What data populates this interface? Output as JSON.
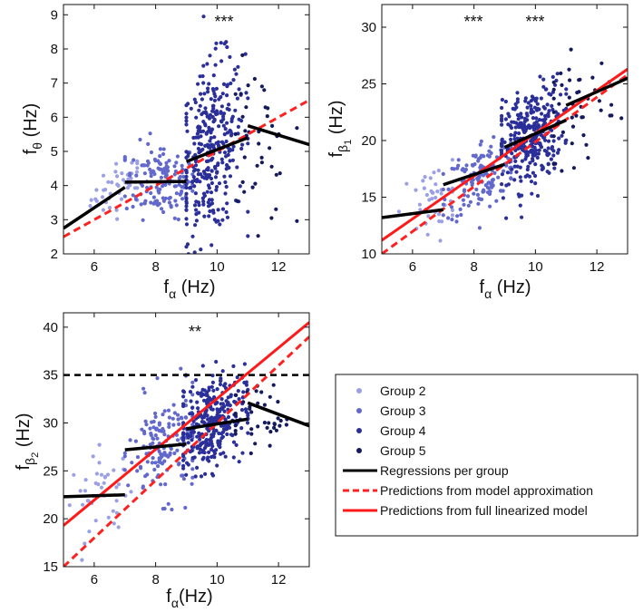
{
  "chart_data": [
    {
      "id": "theta",
      "type": "scatter",
      "xlabel": "f_α (Hz)",
      "ylabel": "f_θ (Hz)",
      "xlim": [
        5,
        13
      ],
      "ylim": [
        2,
        9.3
      ],
      "xticks": [
        6,
        8,
        10,
        12
      ],
      "yticks": [
        2,
        3,
        4,
        5,
        6,
        7,
        8,
        9
      ],
      "significance": [
        {
          "text": "***",
          "x": 10.5,
          "y": 8.9
        }
      ],
      "groups": [
        {
          "name": "Group 2",
          "color": "#9a9fe6",
          "n": 45,
          "x_range": [
            5.4,
            7.4
          ],
          "center": [
            6.9,
            4.0
          ],
          "spread": [
            0.5,
            0.35
          ],
          "slope": 0.4
        },
        {
          "name": "Group 3",
          "color": "#6268cc",
          "n": 140,
          "x_range": [
            7.0,
            9.2
          ],
          "center": [
            8.2,
            4.15
          ],
          "spread": [
            0.6,
            0.55
          ],
          "slope": 0.0
        },
        {
          "name": "Group 4",
          "color": "#2b2f99",
          "n": 330,
          "x_range": [
            9.0,
            11.0
          ],
          "center": [
            9.8,
            5.0
          ],
          "spread": [
            0.55,
            1.25
          ],
          "slope": 0.6
        },
        {
          "name": "Group 5",
          "color": "#141a5c",
          "n": 40,
          "x_range": [
            10.6,
            12.6
          ],
          "center": [
            11.3,
            5.2
          ],
          "spread": [
            0.55,
            1.1
          ],
          "slope": -0.3
        }
      ],
      "regressions": [
        {
          "x": [
            5,
            7
          ],
          "y": [
            2.75,
            3.95
          ]
        },
        {
          "x": [
            7,
            9
          ],
          "y": [
            4.1,
            4.12
          ]
        },
        {
          "x": [
            9,
            11
          ],
          "y": [
            4.7,
            5.4
          ]
        },
        {
          "x": [
            11,
            13
          ],
          "y": [
            5.75,
            5.2
          ]
        }
      ],
      "model_approx": {
        "x": [
          5,
          13
        ],
        "y": [
          2.5,
          6.5
        ]
      }
    },
    {
      "id": "beta1",
      "type": "scatter",
      "xlabel": "f_α (Hz)",
      "ylabel": "f_β1 (Hz)",
      "xlim": [
        5,
        13
      ],
      "ylim": [
        10,
        32
      ],
      "xticks": [
        6,
        8,
        10,
        12
      ],
      "yticks": [
        10,
        15,
        20,
        25,
        30
      ],
      "significance": [
        {
          "text": "***",
          "x": 8.0,
          "y": 30.8
        },
        {
          "text": "***",
          "x": 10.0,
          "y": 30.8
        }
      ],
      "groups": [
        {
          "name": "Group 2",
          "color": "#9a9fe6",
          "n": 40,
          "x_range": [
            5.3,
            7.3
          ],
          "center": [
            6.6,
            14.5
          ],
          "spread": [
            0.5,
            1.6
          ],
          "slope": 0.8
        },
        {
          "name": "Group 3",
          "color": "#6268cc",
          "n": 150,
          "x_range": [
            7.0,
            9.2
          ],
          "center": [
            8.3,
            17.0
          ],
          "spread": [
            0.6,
            1.6
          ],
          "slope": 1.3
        },
        {
          "name": "Group 4",
          "color": "#2b2f99",
          "n": 320,
          "x_range": [
            8.9,
            11.0
          ],
          "center": [
            9.8,
            20.2
          ],
          "spread": [
            0.55,
            2.1
          ],
          "slope": 1.5
        },
        {
          "name": "Group 5",
          "color": "#141a5c",
          "n": 45,
          "x_range": [
            10.6,
            12.8
          ],
          "center": [
            11.4,
            23.0
          ],
          "spread": [
            0.6,
            2.4
          ],
          "slope": 1.1
        }
      ],
      "regressions": [
        {
          "x": [
            5,
            7
          ],
          "y": [
            13.2,
            13.9
          ]
        },
        {
          "x": [
            7,
            9
          ],
          "y": [
            16.1,
            17.9
          ]
        },
        {
          "x": [
            9,
            11
          ],
          "y": [
            19.4,
            21.8
          ]
        },
        {
          "x": [
            11,
            13
          ],
          "y": [
            23.1,
            25.5
          ]
        }
      ],
      "model_approx": {
        "x": [
          5,
          13
        ],
        "y": [
          10.0,
          25.8
        ]
      },
      "full_model": {
        "x": [
          5,
          13
        ],
        "y": [
          11.2,
          26.3
        ]
      }
    },
    {
      "id": "beta2",
      "type": "scatter",
      "xlabel": "f_α(Hz)",
      "ylabel": "f_β2 (Hz)",
      "xlim": [
        5,
        13
      ],
      "ylim": [
        15,
        41.5
      ],
      "xticks": [
        6,
        8,
        10,
        12
      ],
      "yticks": [
        15,
        20,
        25,
        30,
        35,
        40
      ],
      "significance": [
        {
          "text": "**",
          "x": 8.9,
          "y": 39.6
        }
      ],
      "groups": [
        {
          "name": "Group 2",
          "color": "#9a9fe6",
          "n": 40,
          "x_range": [
            5.2,
            7.2
          ],
          "center": [
            6.3,
            22.5
          ],
          "spread": [
            0.55,
            2.2
          ],
          "slope": 0.5
        },
        {
          "name": "Group 3",
          "color": "#6268cc",
          "n": 160,
          "x_range": [
            7.0,
            9.2
          ],
          "center": [
            8.3,
            27.5
          ],
          "spread": [
            0.6,
            2.7
          ],
          "slope": 0.6
        },
        {
          "name": "Group 4",
          "color": "#2b2f99",
          "n": 320,
          "x_range": [
            8.9,
            11.0
          ],
          "center": [
            9.8,
            30.0
          ],
          "spread": [
            0.55,
            2.4
          ],
          "slope": 1.2
        },
        {
          "name": "Group 5",
          "color": "#141a5c",
          "n": 40,
          "x_range": [
            10.6,
            12.6
          ],
          "center": [
            11.3,
            31.0
          ],
          "spread": [
            0.55,
            1.8
          ],
          "slope": -0.8
        }
      ],
      "regressions": [
        {
          "x": [
            5,
            7
          ],
          "y": [
            22.3,
            22.5
          ]
        },
        {
          "x": [
            7,
            9
          ],
          "y": [
            27.2,
            27.8
          ]
        },
        {
          "x": [
            9,
            11
          ],
          "y": [
            29.4,
            30.4
          ]
        },
        {
          "x": [
            11,
            13
          ],
          "y": [
            32.1,
            29.7
          ]
        }
      ],
      "model_approx": {
        "x": [
          5,
          13
        ],
        "y": [
          15.0,
          39.0
        ]
      },
      "full_model": {
        "x": [
          5,
          13
        ],
        "y": [
          19.3,
          40.5
        ]
      },
      "threshold_line": {
        "y": 35
      }
    }
  ],
  "legend": {
    "position": "bottom-right",
    "entries": [
      {
        "label": "Group 2",
        "kind": "marker",
        "color": "#9a9fe6"
      },
      {
        "label": "Group 3",
        "kind": "marker",
        "color": "#6268cc"
      },
      {
        "label": "Group 4",
        "kind": "marker",
        "color": "#2b2f99"
      },
      {
        "label": "Group 5",
        "kind": "marker",
        "color": "#141a5c"
      },
      {
        "label": "Regressions per group",
        "kind": "line",
        "color": "#000000",
        "dash": "solid"
      },
      {
        "label": "Predictions from model approximation",
        "kind": "line",
        "color": "#ff2020",
        "dash": "dashed"
      },
      {
        "label": "Predictions from full linearized model",
        "kind": "line",
        "color": "#ff1a1a",
        "dash": "solid"
      }
    ]
  },
  "colors": {
    "regression": "#000000",
    "model_approx": "#ff2020",
    "full_model": "#ff1a1a",
    "threshold": "#000000"
  }
}
